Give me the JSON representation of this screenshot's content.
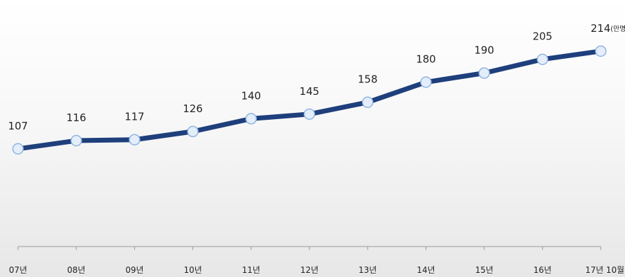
{
  "chart_data": {
    "type": "line",
    "title": "",
    "xlabel": "",
    "ylabel": "",
    "categories": [
      "07년",
      "08년",
      "09년",
      "10년",
      "11년",
      "12년",
      "13년",
      "14년",
      "15년",
      "16년",
      "17년 10월"
    ],
    "series": [
      {
        "values": [
          107,
          116,
          117,
          126,
          140,
          145,
          158,
          180,
          190,
          205,
          214
        ]
      }
    ],
    "value_unit": "(만명)",
    "ylim": [
      0,
      270
    ],
    "grid": false,
    "legend": "none",
    "colors": {
      "line": "#1f3f7c",
      "marker_fill": "#e4eefb",
      "marker_stroke": "#8fb3e0",
      "axis": "#9a9a9a"
    }
  }
}
